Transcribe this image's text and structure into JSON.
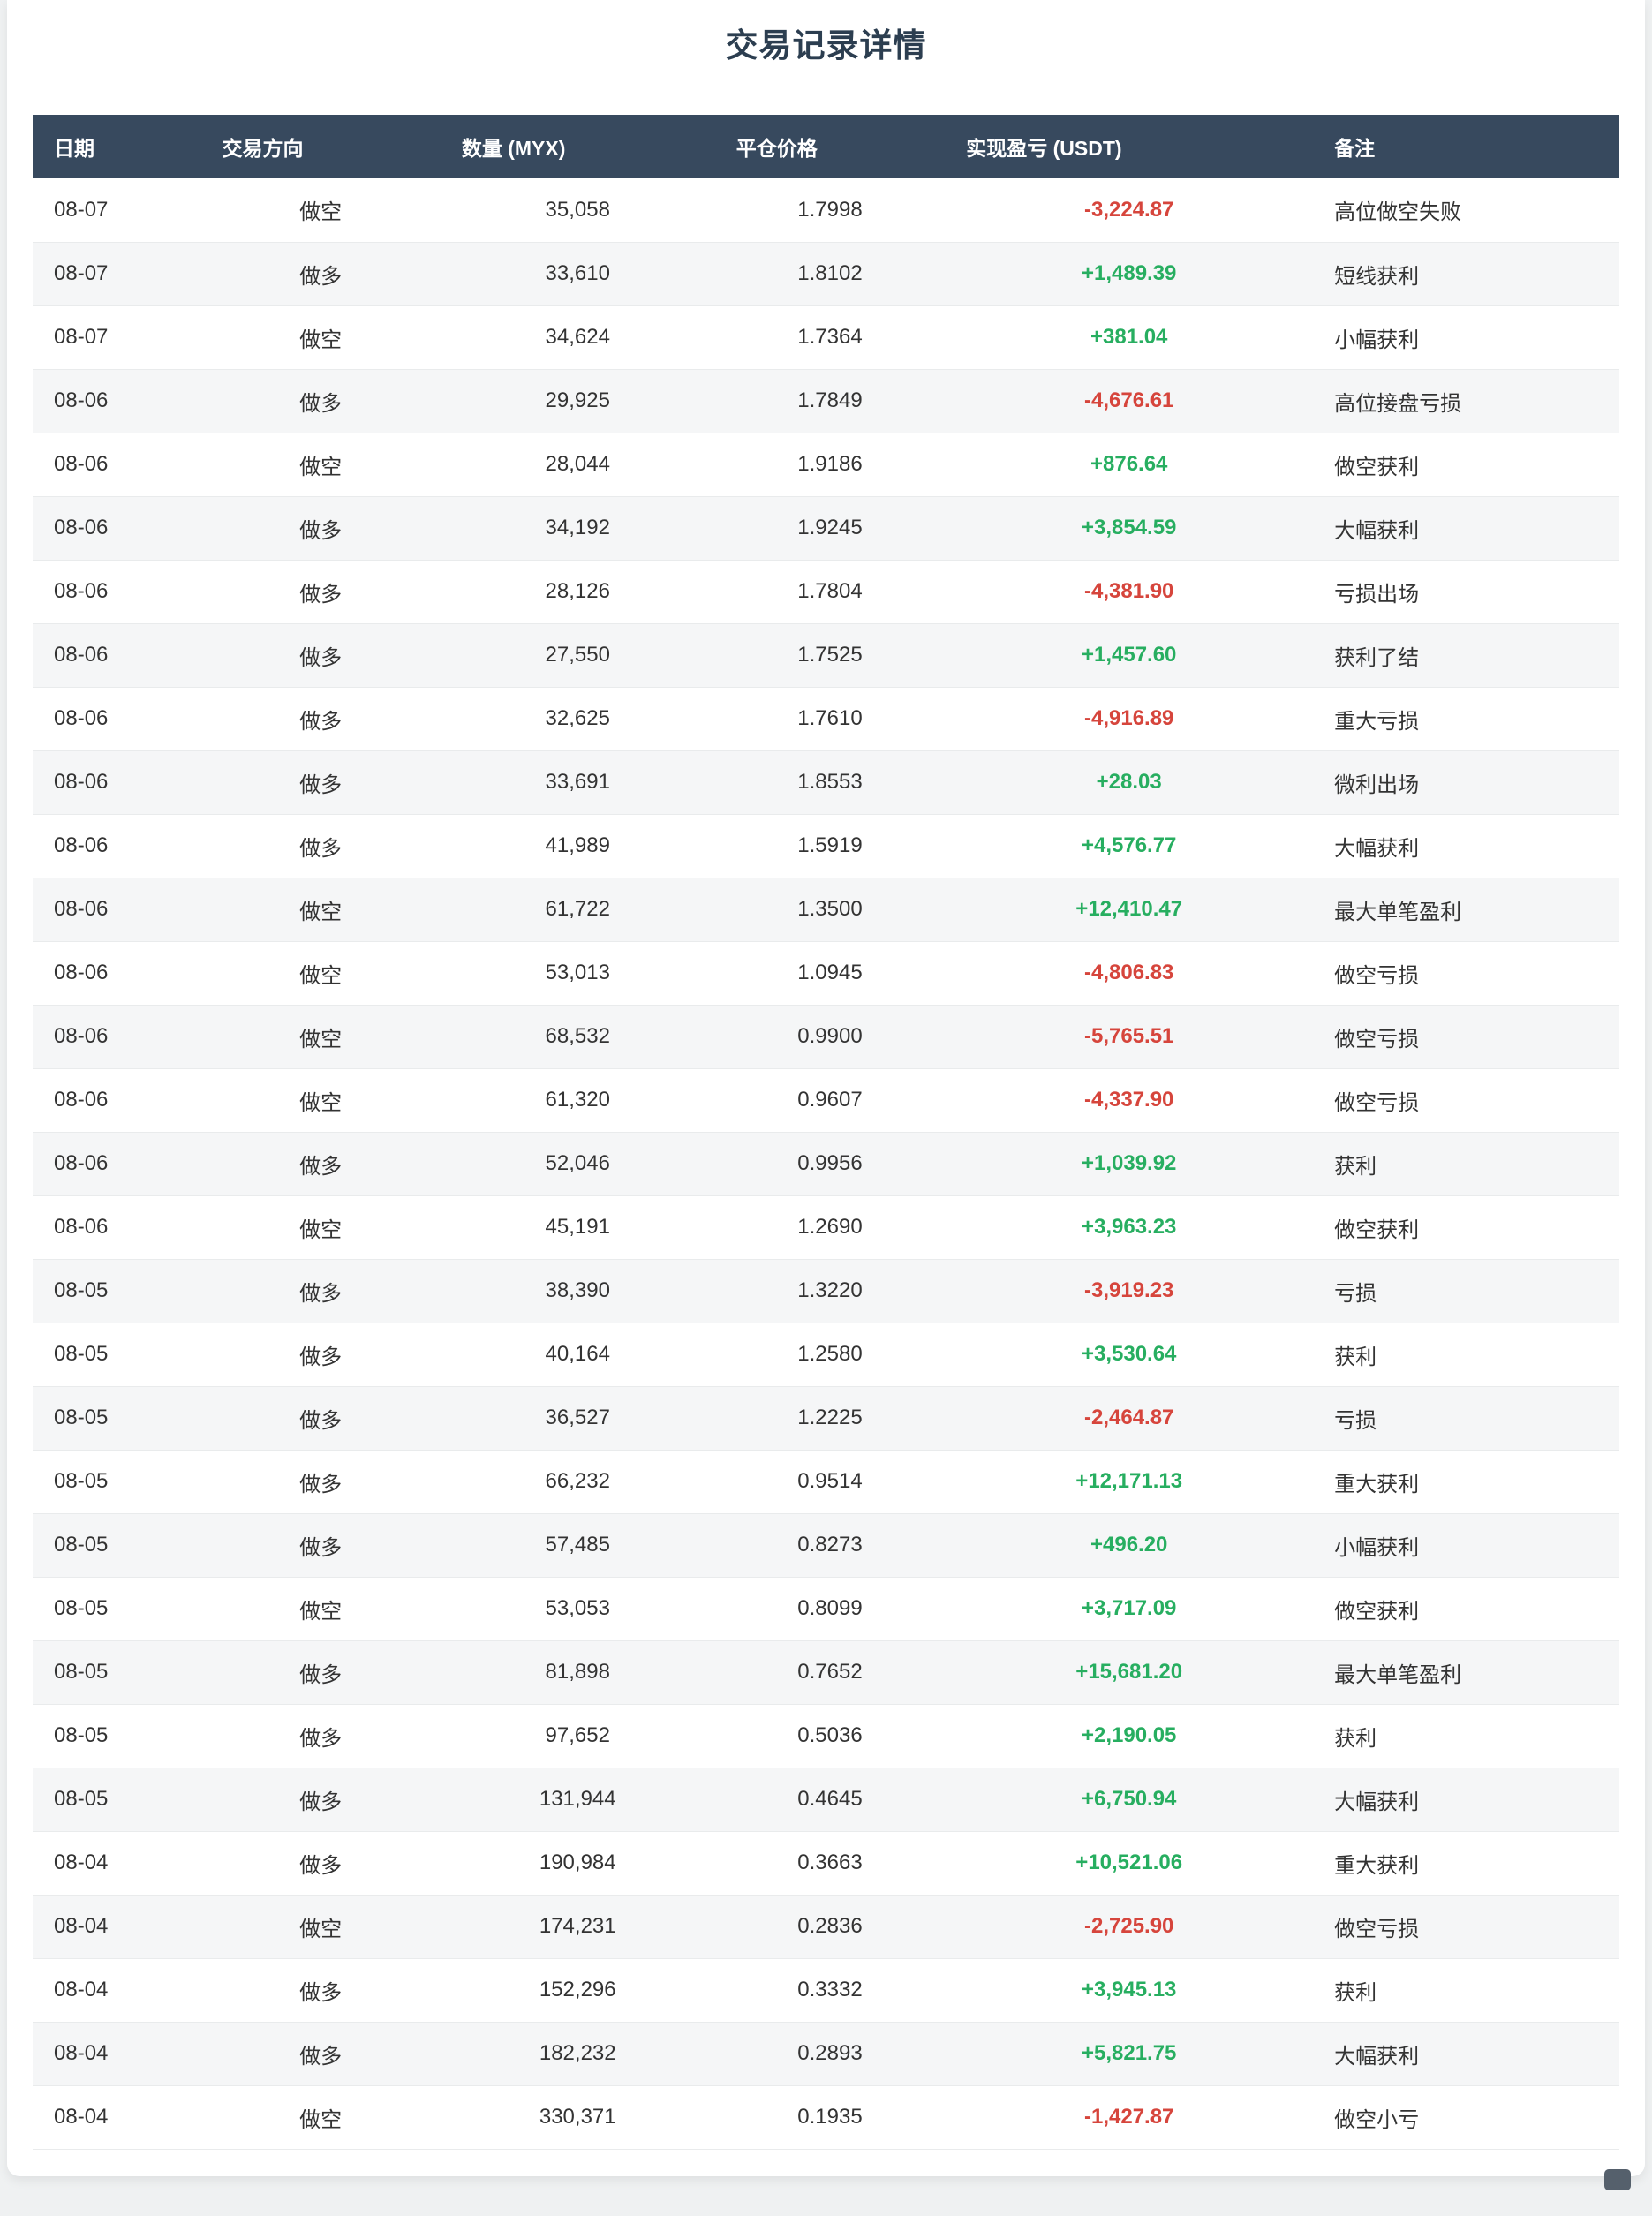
{
  "page": {
    "title": "交易记录详情"
  },
  "colors": {
    "header_bg": "#37495e",
    "title": "#2c3e50",
    "positive": "#27ae60",
    "negative": "#d6453c",
    "stripe": "#f5f6f7",
    "page_bg": "#eff1f2"
  },
  "table": {
    "headers": [
      "日期",
      "交易方向",
      "数量 (MYX)",
      "平仓价格",
      "实现盈亏 (USDT)",
      "备注"
    ],
    "col_widths": [
      "10.6%",
      "15.1%",
      "17.3%",
      "14.5%",
      "23.2%",
      "19.3%"
    ],
    "rows": [
      {
        "date": "08-07",
        "direction": "做空",
        "quantity": "35,058",
        "price": "1.7998",
        "pnl": "-3,224.87",
        "note": "高位做空失败"
      },
      {
        "date": "08-07",
        "direction": "做多",
        "quantity": "33,610",
        "price": "1.8102",
        "pnl": "+1,489.39",
        "note": "短线获利"
      },
      {
        "date": "08-07",
        "direction": "做空",
        "quantity": "34,624",
        "price": "1.7364",
        "pnl": "+381.04",
        "note": "小幅获利"
      },
      {
        "date": "08-06",
        "direction": "做多",
        "quantity": "29,925",
        "price": "1.7849",
        "pnl": "-4,676.61",
        "note": "高位接盘亏损"
      },
      {
        "date": "08-06",
        "direction": "做空",
        "quantity": "28,044",
        "price": "1.9186",
        "pnl": "+876.64",
        "note": "做空获利"
      },
      {
        "date": "08-06",
        "direction": "做多",
        "quantity": "34,192",
        "price": "1.9245",
        "pnl": "+3,854.59",
        "note": "大幅获利"
      },
      {
        "date": "08-06",
        "direction": "做多",
        "quantity": "28,126",
        "price": "1.7804",
        "pnl": "-4,381.90",
        "note": "亏损出场"
      },
      {
        "date": "08-06",
        "direction": "做多",
        "quantity": "27,550",
        "price": "1.7525",
        "pnl": "+1,457.60",
        "note": "获利了结"
      },
      {
        "date": "08-06",
        "direction": "做多",
        "quantity": "32,625",
        "price": "1.7610",
        "pnl": "-4,916.89",
        "note": "重大亏损"
      },
      {
        "date": "08-06",
        "direction": "做多",
        "quantity": "33,691",
        "price": "1.8553",
        "pnl": "+28.03",
        "note": "微利出场"
      },
      {
        "date": "08-06",
        "direction": "做多",
        "quantity": "41,989",
        "price": "1.5919",
        "pnl": "+4,576.77",
        "note": "大幅获利"
      },
      {
        "date": "08-06",
        "direction": "做空",
        "quantity": "61,722",
        "price": "1.3500",
        "pnl": "+12,410.47",
        "note": "最大单笔盈利"
      },
      {
        "date": "08-06",
        "direction": "做空",
        "quantity": "53,013",
        "price": "1.0945",
        "pnl": "-4,806.83",
        "note": "做空亏损"
      },
      {
        "date": "08-06",
        "direction": "做空",
        "quantity": "68,532",
        "price": "0.9900",
        "pnl": "-5,765.51",
        "note": "做空亏损"
      },
      {
        "date": "08-06",
        "direction": "做空",
        "quantity": "61,320",
        "price": "0.9607",
        "pnl": "-4,337.90",
        "note": "做空亏损"
      },
      {
        "date": "08-06",
        "direction": "做多",
        "quantity": "52,046",
        "price": "0.9956",
        "pnl": "+1,039.92",
        "note": "获利"
      },
      {
        "date": "08-06",
        "direction": "做空",
        "quantity": "45,191",
        "price": "1.2690",
        "pnl": "+3,963.23",
        "note": "做空获利"
      },
      {
        "date": "08-05",
        "direction": "做多",
        "quantity": "38,390",
        "price": "1.3220",
        "pnl": "-3,919.23",
        "note": "亏损"
      },
      {
        "date": "08-05",
        "direction": "做多",
        "quantity": "40,164",
        "price": "1.2580",
        "pnl": "+3,530.64",
        "note": "获利"
      },
      {
        "date": "08-05",
        "direction": "做多",
        "quantity": "36,527",
        "price": "1.2225",
        "pnl": "-2,464.87",
        "note": "亏损"
      },
      {
        "date": "08-05",
        "direction": "做多",
        "quantity": "66,232",
        "price": "0.9514",
        "pnl": "+12,171.13",
        "note": "重大获利"
      },
      {
        "date": "08-05",
        "direction": "做多",
        "quantity": "57,485",
        "price": "0.8273",
        "pnl": "+496.20",
        "note": "小幅获利"
      },
      {
        "date": "08-05",
        "direction": "做空",
        "quantity": "53,053",
        "price": "0.8099",
        "pnl": "+3,717.09",
        "note": "做空获利"
      },
      {
        "date": "08-05",
        "direction": "做多",
        "quantity": "81,898",
        "price": "0.7652",
        "pnl": "+15,681.20",
        "note": "最大单笔盈利"
      },
      {
        "date": "08-05",
        "direction": "做多",
        "quantity": "97,652",
        "price": "0.5036",
        "pnl": "+2,190.05",
        "note": "获利"
      },
      {
        "date": "08-05",
        "direction": "做多",
        "quantity": "131,944",
        "price": "0.4645",
        "pnl": "+6,750.94",
        "note": "大幅获利"
      },
      {
        "date": "08-04",
        "direction": "做多",
        "quantity": "190,984",
        "price": "0.3663",
        "pnl": "+10,521.06",
        "note": "重大获利"
      },
      {
        "date": "08-04",
        "direction": "做空",
        "quantity": "174,231",
        "price": "0.2836",
        "pnl": "-2,725.90",
        "note": "做空亏损"
      },
      {
        "date": "08-04",
        "direction": "做多",
        "quantity": "152,296",
        "price": "0.3332",
        "pnl": "+3,945.13",
        "note": "获利"
      },
      {
        "date": "08-04",
        "direction": "做多",
        "quantity": "182,232",
        "price": "0.2893",
        "pnl": "+5,821.75",
        "note": "大幅获利"
      },
      {
        "date": "08-04",
        "direction": "做空",
        "quantity": "330,371",
        "price": "0.1935",
        "pnl": "-1,427.87",
        "note": "做空小亏"
      }
    ]
  }
}
